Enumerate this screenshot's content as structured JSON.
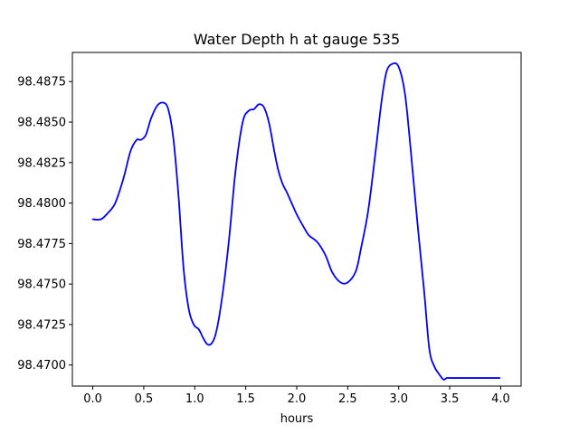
{
  "chart_data": {
    "type": "line",
    "title": "Water Depth h at gauge 535",
    "xlabel": "hours",
    "ylabel": "",
    "xlim": [
      -0.2,
      4.2
    ],
    "ylim": [
      98.4687,
      98.4893
    ],
    "xticks": [
      {
        "value": 0.0,
        "label": "0.0"
      },
      {
        "value": 0.5,
        "label": "0.5"
      },
      {
        "value": 1.0,
        "label": "1.0"
      },
      {
        "value": 1.5,
        "label": "1.5"
      },
      {
        "value": 2.0,
        "label": "2.0"
      },
      {
        "value": 2.5,
        "label": "2.5"
      },
      {
        "value": 3.0,
        "label": "3.0"
      },
      {
        "value": 3.5,
        "label": "3.5"
      },
      {
        "value": 4.0,
        "label": "4.0"
      }
    ],
    "yticks": [
      {
        "value": 98.47,
        "label": "98.4700"
      },
      {
        "value": 98.4725,
        "label": "98.4725"
      },
      {
        "value": 98.475,
        "label": "98.4750"
      },
      {
        "value": 98.4775,
        "label": "98.4775"
      },
      {
        "value": 98.48,
        "label": "98.4800"
      },
      {
        "value": 98.4825,
        "label": "98.4825"
      },
      {
        "value": 98.485,
        "label": "98.4850"
      },
      {
        "value": 98.4875,
        "label": "98.4875"
      }
    ],
    "grid": false,
    "series": [
      {
        "color": "#0000ff",
        "x": [
          0.0,
          0.08,
          0.15,
          0.22,
          0.3,
          0.37,
          0.43,
          0.47,
          0.52,
          0.57,
          0.63,
          0.69,
          0.74,
          0.79,
          0.84,
          0.89,
          0.94,
          0.99,
          1.04,
          1.08,
          1.12,
          1.16,
          1.2,
          1.24,
          1.29,
          1.34,
          1.4,
          1.47,
          1.53,
          1.58,
          1.63,
          1.68,
          1.73,
          1.78,
          1.82,
          1.86,
          1.9,
          1.95,
          2.0,
          2.07,
          2.12,
          2.2,
          2.28,
          2.35,
          2.43,
          2.5,
          2.58,
          2.63,
          2.7,
          2.77,
          2.83,
          2.88,
          2.94,
          3.0,
          3.06,
          3.11,
          3.18,
          3.25,
          3.3,
          3.35,
          3.4,
          3.44,
          3.47,
          3.5,
          3.55,
          3.6,
          3.66,
          3.72,
          3.78,
          3.84,
          3.89,
          3.93,
          3.96,
          3.99
        ],
        "y": [
          98.479,
          98.479,
          98.4794,
          98.48,
          98.4815,
          98.4832,
          98.4839,
          98.4839,
          98.4842,
          98.4852,
          98.486,
          98.4862,
          98.4858,
          98.484,
          98.4805,
          98.476,
          98.4735,
          98.4725,
          98.4722,
          98.4717,
          98.4713,
          98.4713,
          98.4718,
          98.473,
          98.4752,
          98.478,
          98.482,
          98.485,
          98.4857,
          98.4858,
          98.4861,
          98.4859,
          98.4849,
          98.4832,
          98.482,
          98.4812,
          98.4807,
          98.48,
          98.4793,
          98.4785,
          98.478,
          98.4776,
          98.4768,
          98.4757,
          98.4751,
          98.4751,
          98.4758,
          98.4772,
          98.4795,
          98.483,
          98.4862,
          98.4881,
          98.4886,
          98.4884,
          98.4868,
          98.4838,
          98.479,
          98.4745,
          98.471,
          98.4699,
          98.4694,
          98.4691,
          98.4692,
          98.4692,
          98.4692,
          98.4692,
          98.4692,
          98.4692,
          98.4692,
          98.4692,
          98.4692,
          98.4692,
          98.4692,
          98.4692
        ]
      }
    ]
  }
}
